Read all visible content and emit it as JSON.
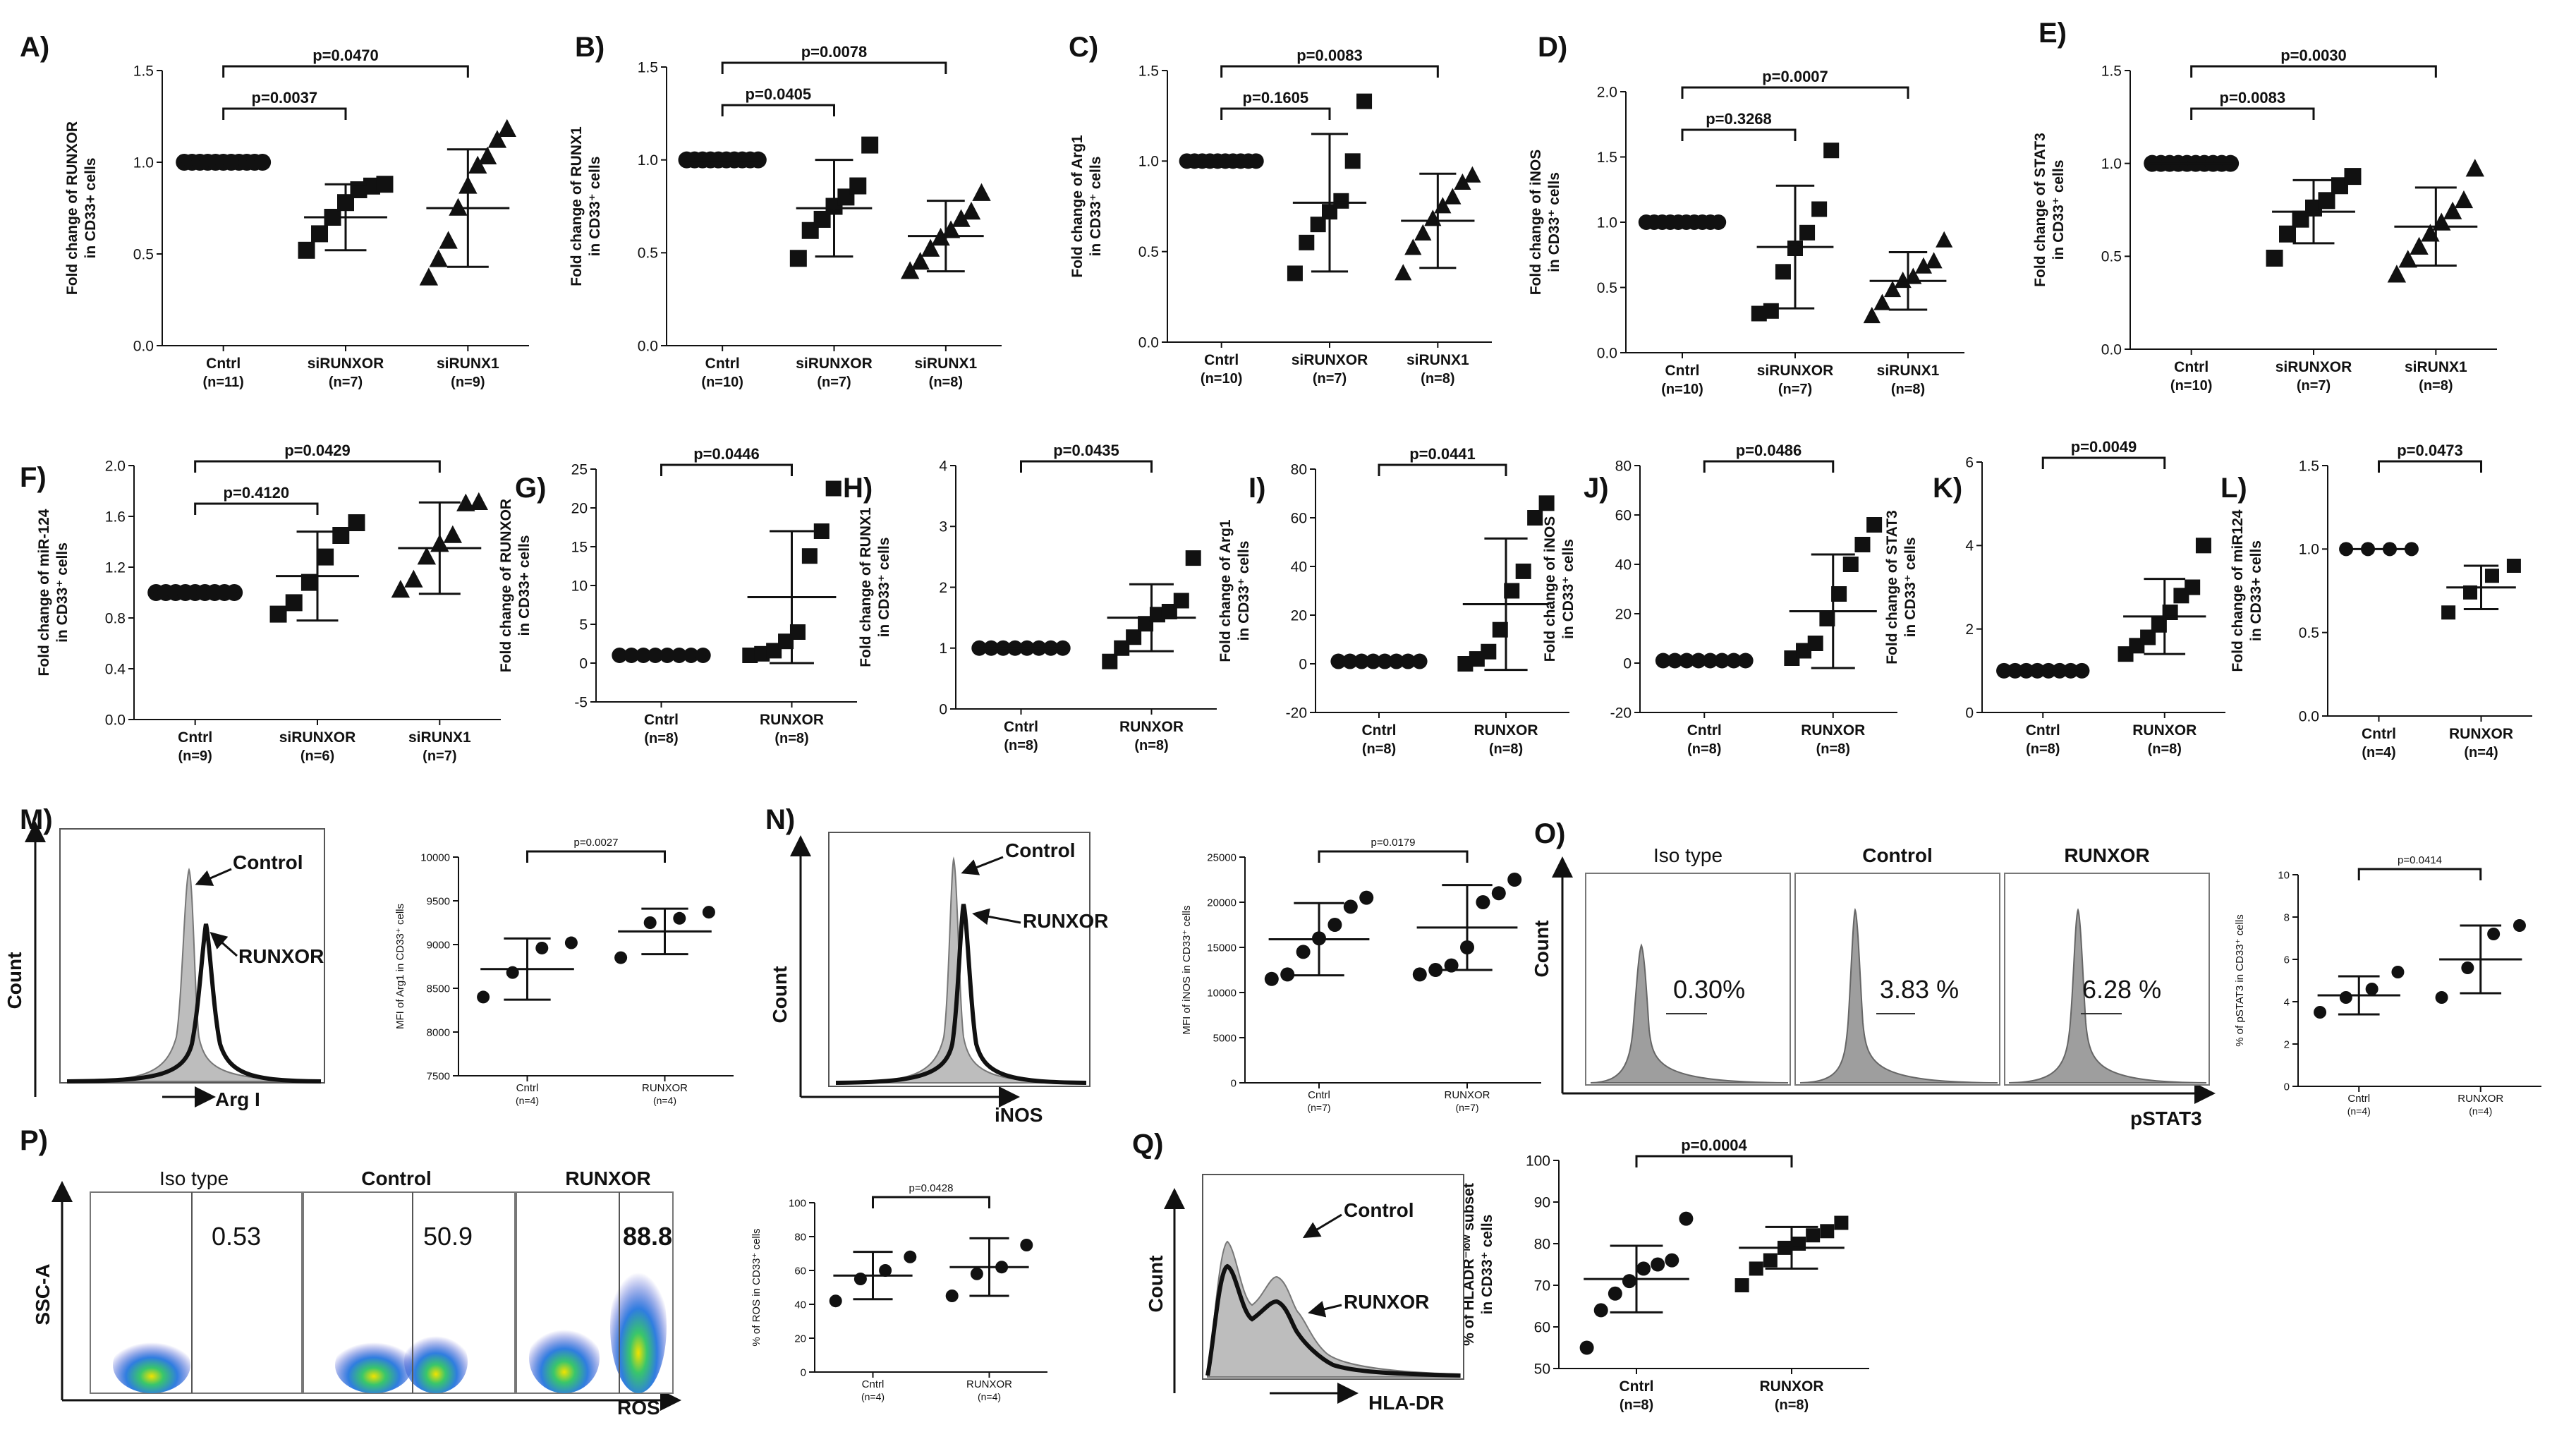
{
  "figure": {
    "panels": [
      "A)",
      "B)",
      "C)",
      "D)",
      "E)",
      "F)",
      "G)",
      "H)",
      "I)",
      "J)",
      "K)",
      "L)",
      "M)",
      "N)",
      "O)",
      "P)",
      "Q)"
    ]
  },
  "chart_data": [
    {
      "id": "A",
      "type": "scatter",
      "ylabel": [
        "Fold change of RUNXOR",
        "in CD33+ cells"
      ],
      "ylim": [
        0,
        1.5
      ],
      "yticks": [
        "0.0",
        "0.5",
        "1.0",
        "1.5"
      ],
      "categories": [
        [
          "Cntrl",
          "(n=11)"
        ],
        [
          "siRUNXOR",
          "(n=7)"
        ],
        [
          "siRUNX1",
          "(n=9)"
        ]
      ],
      "markers": [
        "circle",
        "square",
        "triangle"
      ],
      "groups": [
        [
          1,
          1,
          1,
          1,
          1,
          1,
          1,
          1,
          1,
          1,
          1
        ],
        [
          0.52,
          0.61,
          0.7,
          0.78,
          0.85,
          0.87,
          0.88
        ],
        [
          0.37,
          0.47,
          0.57,
          0.75,
          0.87,
          0.98,
          1.03,
          1.12,
          1.18
        ]
      ],
      "mean": [
        1.0,
        0.7,
        0.75
      ],
      "sd": [
        0,
        0.18,
        0.32
      ],
      "comparisons": [
        {
          "from": 0,
          "to": 1,
          "text": "p=0.0037"
        },
        {
          "from": 0,
          "to": 2,
          "text": "p=0.0470"
        }
      ]
    },
    {
      "id": "B",
      "type": "scatter",
      "ylabel": [
        "Fold change of RUNX1",
        "in CD33⁺ cells"
      ],
      "ylim": [
        0,
        1.5
      ],
      "yticks": [
        "0.0",
        "0.5",
        "1.0",
        "1.5"
      ],
      "categories": [
        [
          "Cntrl",
          "(n=10)"
        ],
        [
          "siRUNXOR",
          "(n=7)"
        ],
        [
          "siRUNX1",
          "(n=8)"
        ]
      ],
      "markers": [
        "circle",
        "square",
        "triangle"
      ],
      "groups": [
        [
          1,
          1,
          1,
          1,
          1,
          1,
          1,
          1,
          1,
          1
        ],
        [
          0.47,
          0.62,
          0.68,
          0.75,
          0.8,
          0.86,
          1.08
        ],
        [
          0.4,
          0.45,
          0.52,
          0.58,
          0.62,
          0.68,
          0.72,
          0.82
        ]
      ],
      "mean": [
        1.0,
        0.74,
        0.59
      ],
      "sd": [
        0,
        0.26,
        0.19
      ],
      "comparisons": [
        {
          "from": 0,
          "to": 1,
          "text": "p=0.0405"
        },
        {
          "from": 0,
          "to": 2,
          "text": "p=0.0078"
        }
      ]
    },
    {
      "id": "C",
      "type": "scatter",
      "ylabel": [
        "Fold change of Arg1",
        "in CD33⁺ cells"
      ],
      "ylim": [
        0,
        1.5
      ],
      "yticks": [
        "0.0",
        "0.5",
        "1.0",
        "1.5"
      ],
      "categories": [
        [
          "Cntrl",
          "(n=10)"
        ],
        [
          "siRUNXOR",
          "(n=7)"
        ],
        [
          "siRUNX1",
          "(n=8)"
        ]
      ],
      "markers": [
        "circle",
        "square",
        "triangle"
      ],
      "groups": [
        [
          1,
          1,
          1,
          1,
          1,
          1,
          1,
          1,
          1,
          1
        ],
        [
          0.38,
          0.55,
          0.65,
          0.72,
          0.78,
          1.0,
          1.33
        ],
        [
          0.38,
          0.52,
          0.6,
          0.68,
          0.75,
          0.8,
          0.88,
          0.92
        ]
      ],
      "mean": [
        1.0,
        0.77,
        0.67
      ],
      "sd": [
        0,
        0.38,
        0.26
      ],
      "comparisons": [
        {
          "from": 0,
          "to": 1,
          "text": "p=0.1605"
        },
        {
          "from": 0,
          "to": 2,
          "text": "p=0.0083"
        }
      ]
    },
    {
      "id": "D",
      "type": "scatter",
      "ylabel": [
        "Fold change of iNOS",
        "in CD33⁺ cells"
      ],
      "ylim": [
        0,
        2.0
      ],
      "yticks": [
        "0.0",
        "0.5",
        "1.0",
        "1.5",
        "2.0"
      ],
      "categories": [
        [
          "Cntrl",
          "(n=10)"
        ],
        [
          "siRUNXOR",
          "(n=7)"
        ],
        [
          "siRUNX1",
          "(n=8)"
        ]
      ],
      "markers": [
        "circle",
        "square",
        "triangle"
      ],
      "groups": [
        [
          1,
          1,
          1,
          1,
          1,
          1,
          1,
          1,
          1,
          1
        ],
        [
          0.3,
          0.32,
          0.62,
          0.8,
          0.92,
          1.1,
          1.55
        ],
        [
          0.28,
          0.38,
          0.48,
          0.55,
          0.58,
          0.66,
          0.7,
          0.86
        ]
      ],
      "mean": [
        1.0,
        0.81,
        0.55
      ],
      "sd": [
        0,
        0.47,
        0.22
      ],
      "comparisons": [
        {
          "from": 0,
          "to": 1,
          "text": "p=0.3268"
        },
        {
          "from": 0,
          "to": 2,
          "text": "p=0.0007"
        }
      ]
    },
    {
      "id": "E",
      "type": "scatter",
      "ylabel": [
        "Fold change of STAT3",
        "in CD33⁺ cells"
      ],
      "ylim": [
        0,
        1.5
      ],
      "yticks": [
        "0.0",
        "0.5",
        "1.0",
        "1.5"
      ],
      "categories": [
        [
          "Cntrl",
          "(n=10)"
        ],
        [
          "siRUNXOR",
          "(n=7)"
        ],
        [
          "siRUNX1",
          "(n=8)"
        ]
      ],
      "markers": [
        "circle",
        "square",
        "triangle"
      ],
      "groups": [
        [
          1,
          1,
          1,
          1,
          1,
          1,
          1,
          1,
          1,
          1
        ],
        [
          0.49,
          0.62,
          0.7,
          0.76,
          0.8,
          0.88,
          0.93
        ],
        [
          0.4,
          0.48,
          0.55,
          0.62,
          0.68,
          0.74,
          0.8,
          0.97
        ]
      ],
      "mean": [
        1.0,
        0.74,
        0.66
      ],
      "sd": [
        0,
        0.17,
        0.21
      ],
      "comparisons": [
        {
          "from": 0,
          "to": 1,
          "text": "p=0.0083"
        },
        {
          "from": 0,
          "to": 2,
          "text": "p=0.0030"
        }
      ]
    },
    {
      "id": "F",
      "type": "scatter",
      "ylabel": [
        "Fold change of miR-124",
        "in CD33⁺ cells"
      ],
      "ylim": [
        0,
        2.0
      ],
      "yticks": [
        "0.0",
        "0.4",
        "0.8",
        "1.2",
        "1.6",
        "2.0"
      ],
      "categories": [
        [
          "Cntrl",
          "(n=9)"
        ],
        [
          "siRUNXOR",
          "(n=6)"
        ],
        [
          "siRUNX1",
          "(n=7)"
        ]
      ],
      "markers": [
        "circle",
        "square",
        "triangle"
      ],
      "groups": [
        [
          1,
          1,
          1,
          1,
          1,
          1,
          1,
          1,
          1
        ],
        [
          0.83,
          0.92,
          1.08,
          1.28,
          1.45,
          1.55
        ],
        [
          1.02,
          1.1,
          1.28,
          1.38,
          1.45,
          1.7,
          1.71
        ]
      ],
      "mean": [
        1.0,
        1.13,
        1.35
      ],
      "sd": [
        0,
        0.35,
        0.36
      ],
      "comparisons": [
        {
          "from": 0,
          "to": 1,
          "text": "p=0.4120"
        },
        {
          "from": 0,
          "to": 2,
          "text": "p=0.0429"
        }
      ]
    },
    {
      "id": "G",
      "type": "scatter",
      "ylabel": [
        "Fold change of RUNXOR",
        "in CD33+ cells"
      ],
      "ylim": [
        -5,
        25
      ],
      "yticks": [
        "-5",
        "0",
        "5",
        "10",
        "15",
        "20",
        "25"
      ],
      "categories": [
        [
          "Cntrl",
          "(n=8)"
        ],
        [
          "RUNXOR",
          "(n=8)"
        ]
      ],
      "markers": [
        "circle",
        "square"
      ],
      "groups": [
        [
          1,
          1,
          1,
          1,
          1,
          1,
          1,
          1
        ],
        [
          1.0,
          1.2,
          1.6,
          2.8,
          4.0,
          13.8,
          17.0,
          22.5
        ]
      ],
      "mean": [
        1.0,
        8.5
      ],
      "sd": [
        0,
        8.5
      ],
      "comparisons": [
        {
          "from": 0,
          "to": 1,
          "text": "p=0.0446"
        }
      ]
    },
    {
      "id": "H",
      "type": "scatter",
      "ylabel": [
        "Fold change of RUNX1",
        "in CD33⁺ cells"
      ],
      "ylim": [
        0,
        4
      ],
      "yticks": [
        "0",
        "1",
        "2",
        "3",
        "4"
      ],
      "categories": [
        [
          "Cntrl",
          "(n=8)"
        ],
        [
          "RUNXOR",
          "(n=8)"
        ]
      ],
      "markers": [
        "circle",
        "square"
      ],
      "groups": [
        [
          1,
          1,
          1,
          1,
          1,
          1,
          1,
          1
        ],
        [
          0.78,
          1.0,
          1.18,
          1.4,
          1.55,
          1.6,
          1.78,
          2.48
        ]
      ],
      "mean": [
        1.0,
        1.5
      ],
      "sd": [
        0,
        0.55
      ],
      "comparisons": [
        {
          "from": 0,
          "to": 1,
          "text": "p=0.0435"
        }
      ]
    },
    {
      "id": "I",
      "type": "scatter",
      "ylabel": [
        "Fold change of Arg1",
        "in CD33⁺ cells"
      ],
      "ylim": [
        -20,
        80
      ],
      "yticks": [
        "-20",
        "0",
        "20",
        "40",
        "60",
        "80"
      ],
      "categories": [
        [
          "Cntrl",
          "(n=8)"
        ],
        [
          "RUNXOR",
          "(n=8)"
        ]
      ],
      "markers": [
        "circle",
        "square"
      ],
      "groups": [
        [
          1,
          1,
          1,
          1,
          1,
          1,
          1,
          1
        ],
        [
          0,
          2,
          5,
          14,
          30,
          38,
          60,
          66
        ]
      ],
      "mean": [
        1.0,
        24.5
      ],
      "sd": [
        0,
        27
      ],
      "comparisons": [
        {
          "from": 0,
          "to": 1,
          "text": "p=0.0441"
        }
      ]
    },
    {
      "id": "J",
      "type": "scatter",
      "ylabel": [
        "Fold change of iNOS",
        "in CD33⁺ cells"
      ],
      "ylim": [
        -20,
        80
      ],
      "yticks": [
        "-20",
        "0",
        "20",
        "40",
        "60",
        "80"
      ],
      "categories": [
        [
          "Cntrl",
          "(n=8)"
        ],
        [
          "RUNXOR",
          "(n=8)"
        ]
      ],
      "markers": [
        "circle",
        "square"
      ],
      "groups": [
        [
          1,
          1,
          1,
          1,
          1,
          1,
          1,
          1
        ],
        [
          2,
          5,
          8,
          18,
          28,
          40,
          48,
          56
        ]
      ],
      "mean": [
        1.0,
        21.0
      ],
      "sd": [
        0,
        23
      ],
      "comparisons": [
        {
          "from": 0,
          "to": 1,
          "text": "p=0.0486"
        }
      ]
    },
    {
      "id": "K",
      "type": "scatter",
      "ylabel": [
        "Fold change of STAT3",
        "in CD33⁺ cells"
      ],
      "ylim": [
        0,
        6
      ],
      "yticks": [
        "0",
        "2",
        "4",
        "6"
      ],
      "categories": [
        [
          "Cntrl",
          "(n=8)"
        ],
        [
          "RUNXOR",
          "(n=8)"
        ]
      ],
      "markers": [
        "circle",
        "square"
      ],
      "groups": [
        [
          1,
          1,
          1,
          1,
          1,
          1,
          1,
          1
        ],
        [
          1.4,
          1.6,
          1.8,
          2.1,
          2.4,
          2.8,
          3.0,
          4.0
        ]
      ],
      "mean": [
        1.0,
        2.3
      ],
      "sd": [
        0,
        0.9
      ],
      "comparisons": [
        {
          "from": 0,
          "to": 1,
          "text": "p=0.0049"
        }
      ]
    },
    {
      "id": "L",
      "type": "scatter",
      "ylabel": [
        "Fold change of  miR124",
        "in CD33+ cells"
      ],
      "ylim": [
        0,
        1.5
      ],
      "yticks": [
        "0.0",
        "0.5",
        "1.0",
        "1.5"
      ],
      "categories": [
        [
          "Cntrl",
          "(n=4)"
        ],
        [
          "RUNXOR",
          "(n=4)"
        ]
      ],
      "markers": [
        "circle",
        "square"
      ],
      "groups": [
        [
          1,
          1,
          1,
          1
        ],
        [
          0.62,
          0.74,
          0.84,
          0.9
        ]
      ],
      "mean": [
        1.0,
        0.77
      ],
      "sd": [
        0,
        0.13
      ],
      "comparisons": [
        {
          "from": 0,
          "to": 1,
          "text": "p=0.0473"
        }
      ]
    },
    {
      "id": "M-scatter",
      "type": "scatter",
      "ylabel": [
        "MFI of Arg1 in CD33⁺ cells"
      ],
      "ylim": [
        7500,
        10000
      ],
      "yticks": [
        "7500",
        "8000",
        "8500",
        "9000",
        "9500",
        "10000"
      ],
      "categories": [
        [
          "Cntrl",
          "(n=4)"
        ],
        [
          "RUNXOR",
          "(n=4)"
        ]
      ],
      "markers": [
        "circle",
        "circle"
      ],
      "groups": [
        [
          8400,
          8680,
          8960,
          9020
        ],
        [
          8850,
          9250,
          9300,
          9370
        ]
      ],
      "mean": [
        8720,
        9150
      ],
      "sd": [
        350,
        260
      ],
      "comparisons": [
        {
          "from": 0,
          "to": 1,
          "text": "p=0.0027"
        }
      ]
    },
    {
      "id": "N-scatter",
      "type": "scatter",
      "ylabel": [
        "MFI of iNOS in CD33⁺ cells"
      ],
      "ylim": [
        0,
        25000
      ],
      "yticks": [
        "0",
        "5000",
        "10000",
        "15000",
        "20000",
        "25000"
      ],
      "categories": [
        [
          "Cntrl",
          "(n=7)"
        ],
        [
          "RUNXOR",
          "(n=7)"
        ]
      ],
      "markers": [
        "circle",
        "circle"
      ],
      "groups": [
        [
          11500,
          12000,
          14500,
          16000,
          17500,
          19500,
          20500
        ],
        [
          12000,
          12500,
          13000,
          15000,
          20000,
          21000,
          22500
        ]
      ],
      "mean": [
        15900,
        17200
      ],
      "sd": [
        4000,
        4700
      ],
      "comparisons": [
        {
          "from": 0,
          "to": 1,
          "text": "p=0.0179"
        }
      ]
    },
    {
      "id": "O-scatter",
      "type": "scatter",
      "ylabel": [
        "% of pSTAT3 in CD33⁺ cells"
      ],
      "ylim": [
        0,
        10
      ],
      "yticks": [
        "0",
        "2",
        "4",
        "6",
        "8",
        "10"
      ],
      "categories": [
        [
          "Cntrl",
          "(n=4)"
        ],
        [
          "RUNXOR",
          "(n=4)"
        ]
      ],
      "markers": [
        "circle",
        "circle"
      ],
      "groups": [
        [
          3.5,
          4.2,
          4.6,
          5.4
        ],
        [
          4.2,
          5.6,
          7.2,
          7.6
        ]
      ],
      "mean": [
        4.3,
        6.0
      ],
      "sd": [
        0.9,
        1.6
      ],
      "comparisons": [
        {
          "from": 0,
          "to": 1,
          "text": "p=0.0414"
        }
      ]
    },
    {
      "id": "P-scatter",
      "type": "scatter",
      "ylabel": [
        "% of ROS in CD33⁺ cells"
      ],
      "ylim": [
        0,
        100
      ],
      "yticks": [
        "0",
        "20",
        "40",
        "60",
        "80",
        "100"
      ],
      "categories": [
        [
          "Cntrl",
          "(n=4)"
        ],
        [
          "RUNXOR",
          "(n=4)"
        ]
      ],
      "markers": [
        "circle",
        "circle"
      ],
      "groups": [
        [
          42,
          55,
          60,
          68
        ],
        [
          45,
          58,
          62,
          75
        ]
      ],
      "mean": [
        57,
        62
      ],
      "sd": [
        14,
        17
      ],
      "comparisons": [
        {
          "from": 0,
          "to": 1,
          "text": "p=0.0428"
        }
      ]
    },
    {
      "id": "Q-scatter",
      "type": "scatter",
      "ylabel": [
        "% of HLADR⁻ˡᵒʷ subset",
        "in CD33⁺ cells"
      ],
      "ylim": [
        50,
        100
      ],
      "yticks": [
        "50",
        "60",
        "70",
        "80",
        "90",
        "100"
      ],
      "categories": [
        [
          "Cntrl",
          "(n=8)"
        ],
        [
          "RUNXOR",
          "(n=8)"
        ]
      ],
      "markers": [
        "circle",
        "square"
      ],
      "groups": [
        [
          55,
          64,
          68,
          71,
          74,
          75,
          76,
          86
        ],
        [
          70,
          74,
          76,
          79,
          80,
          82,
          83,
          85
        ]
      ],
      "mean": [
        71.5,
        79
      ],
      "sd": [
        8,
        5
      ],
      "comparisons": [
        {
          "from": 0,
          "to": 1,
          "text": "p=0.0004"
        }
      ]
    }
  ],
  "flow": {
    "M": {
      "count_label": "Count",
      "x_label": "Arg I",
      "control_label": "Control",
      "treated_label": "RUNXOR"
    },
    "N": {
      "count_label": "Count",
      "x_label": "iNOS",
      "control_label": "Control",
      "treated_label": "RUNXOR"
    },
    "O": {
      "count_label": "Count",
      "x_label": "pSTAT3",
      "titles": [
        "Iso type",
        "Control",
        "RUNXOR"
      ],
      "percents": [
        "0.30%",
        "3.83 %",
        "6.28 %"
      ]
    },
    "P": {
      "y_label": "SSC-A",
      "x_label": "ROS",
      "titles": [
        "Iso type",
        "Control",
        "RUNXOR"
      ],
      "values": [
        "0.53",
        "50.9",
        "88.8"
      ]
    },
    "Q": {
      "count_label": "Count",
      "x_label": "HLA-DR",
      "control_label": "Control",
      "treated_label": "RUNXOR"
    }
  }
}
